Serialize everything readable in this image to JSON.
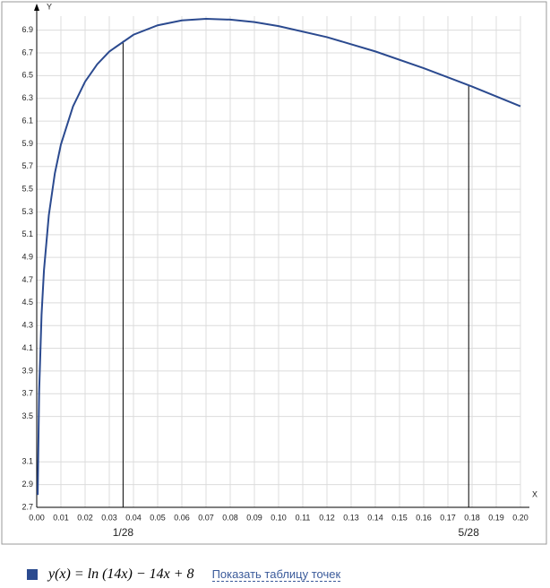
{
  "chart_data": {
    "type": "line",
    "xlabel": "X",
    "ylabel": "Y",
    "xlim": [
      0,
      0.2
    ],
    "ylim": [
      2.7,
      7.0
    ],
    "xticks": [
      {
        "value": 0,
        "label": "0.00"
      },
      0.01,
      0.02,
      0.03,
      0.04,
      0.05,
      0.06,
      0.07,
      0.08,
      0.09,
      {
        "value": 0.1,
        "label": "0.10"
      },
      0.11,
      0.12,
      0.13,
      0.14,
      0.15,
      0.16,
      0.17,
      0.18,
      0.19,
      {
        "value": 0.2,
        "label": "0.20"
      }
    ],
    "yticks": [
      2.7,
      2.9,
      3.1,
      3.5,
      3.7,
      3.9,
      4.1,
      4.3,
      4.5,
      4.7,
      4.9,
      5.1,
      5.3,
      5.5,
      5.7,
      5.9,
      6.1,
      6.3,
      6.5,
      6.7,
      6.9
    ],
    "grid": true,
    "series": [
      {
        "name": "y(x) = ln (14x) − 14x + 8",
        "color": "#2b4a8f",
        "x": [
          0.0004,
          0.001,
          0.002,
          0.003,
          0.005,
          0.0075,
          0.01,
          0.015,
          0.02,
          0.025,
          0.03,
          0.04,
          0.05,
          0.06,
          0.07,
          0.08,
          0.09,
          0.1,
          0.12,
          0.14,
          0.16,
          0.18,
          0.2
        ],
        "values": [
          2.809,
          3.717,
          4.396,
          4.788,
          5.271,
          5.641,
          5.894,
          6.229,
          6.447,
          6.6,
          6.712,
          6.86,
          6.943,
          6.986,
          7.0,
          6.993,
          6.971,
          6.936,
          6.839,
          6.713,
          6.566,
          6.404,
          6.23
        ]
      }
    ],
    "annotations": [
      {
        "label": "1/28",
        "x": 0.0357,
        "y": 6.807
      },
      {
        "label": "5/28",
        "x": 0.1786,
        "y": 6.416
      }
    ],
    "link": "Показать таблицу точек"
  }
}
